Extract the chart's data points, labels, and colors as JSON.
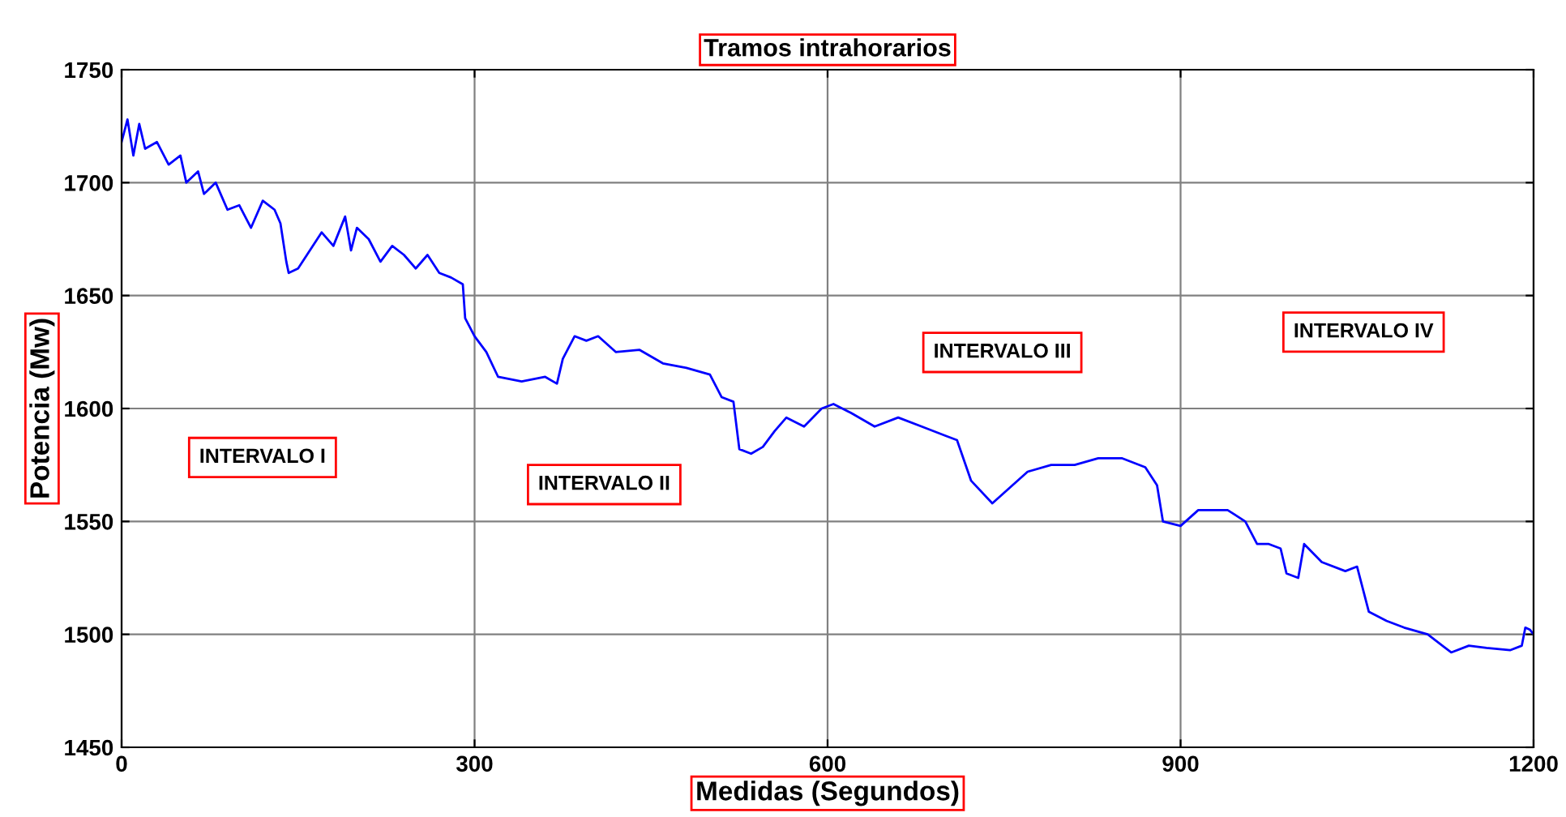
{
  "chart_data": {
    "type": "line",
    "title": "Tramos intrahorarios",
    "xlabel": "Medidas (Segundos)",
    "ylabel": "Potencia (Mw)",
    "annotations": [
      "INTERVALO I",
      "INTERVALO II",
      "INTERVALO III",
      "INTERVALO IV"
    ],
    "series": [
      {
        "color": "#0000ff",
        "x": [
          0,
          5,
          10,
          15,
          20,
          30,
          40,
          50,
          55,
          65,
          70,
          80,
          90,
          100,
          110,
          120,
          130,
          135,
          140,
          142,
          150,
          160,
          170,
          180,
          190,
          195,
          200,
          210,
          220,
          230,
          240,
          250,
          260,
          270,
          280,
          290,
          292,
          300,
          310,
          320,
          340,
          360,
          370,
          375,
          385,
          395,
          405,
          420,
          440,
          460,
          480,
          500,
          510,
          520,
          525,
          535,
          545,
          555,
          565,
          580,
          595,
          605,
          620,
          640,
          660,
          680,
          700,
          710,
          722,
          740,
          755,
          770,
          790,
          810,
          830,
          850,
          870,
          880,
          885,
          900,
          915,
          940,
          955,
          965,
          975,
          985,
          990,
          1000,
          1005,
          1020,
          1040,
          1050,
          1060,
          1075,
          1090,
          1110,
          1130,
          1145,
          1160,
          1180,
          1190,
          1193,
          1197,
          1200
        ],
        "values": [
          1718,
          1728,
          1712,
          1726,
          1715,
          1718,
          1708,
          1712,
          1700,
          1705,
          1695,
          1700,
          1688,
          1690,
          1680,
          1692,
          1688,
          1682,
          1665,
          1660,
          1662,
          1670,
          1678,
          1672,
          1685,
          1670,
          1680,
          1675,
          1665,
          1672,
          1668,
          1662,
          1668,
          1660,
          1658,
          1655,
          1640,
          1632,
          1625,
          1614,
          1612,
          1614,
          1611,
          1622,
          1632,
          1630,
          1632,
          1625,
          1626,
          1620,
          1618,
          1615,
          1605,
          1603,
          1582,
          1580,
          1583,
          1590,
          1596,
          1592,
          1600,
          1602,
          1598,
          1592,
          1596,
          1592,
          1588,
          1586,
          1568,
          1558,
          1565,
          1572,
          1575,
          1575,
          1578,
          1578,
          1574,
          1566,
          1550,
          1548,
          1555,
          1555,
          1550,
          1540,
          1540,
          1538,
          1527,
          1525,
          1540,
          1532,
          1528,
          1530,
          1510,
          1506,
          1503,
          1500,
          1492,
          1495,
          1494,
          1493,
          1495,
          1503,
          1502,
          1500
        ]
      }
    ],
    "xlim": [
      0,
      1200
    ],
    "xticks": [
      0,
      300,
      600,
      900,
      1200
    ],
    "ylim": [
      1450,
      1750
    ],
    "yticks": [
      1450,
      1500,
      1550,
      1600,
      1650,
      1700,
      1750
    ],
    "grid": true,
    "legend": false,
    "marker": "none",
    "line_style": "solid"
  }
}
